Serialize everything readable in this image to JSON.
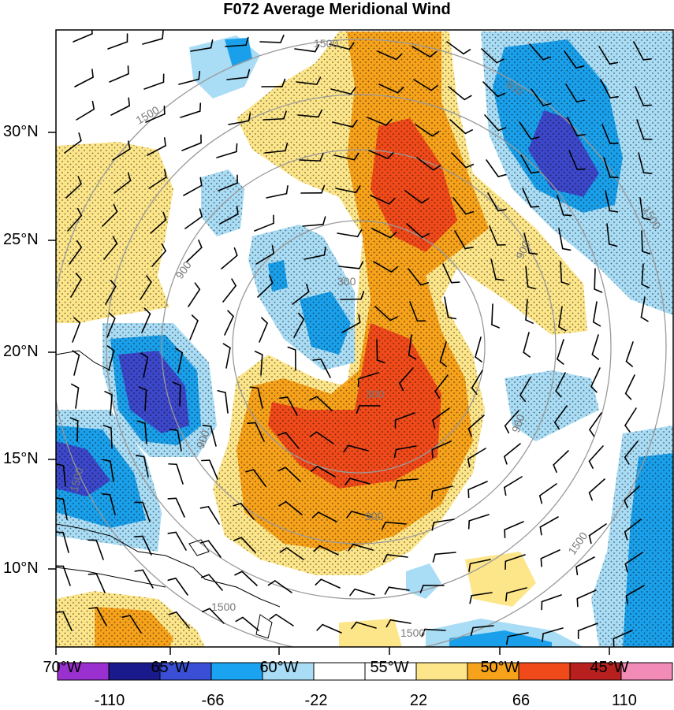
{
  "title": "F072 Average Meridional Wind",
  "latitude_labels": [
    "30°N",
    "25°N",
    "20°N",
    "15°N",
    "10°N"
  ],
  "longitude_labels": [
    "70°W",
    "65°W",
    "60°W",
    "55°W",
    "50°W",
    "45°W"
  ],
  "contour_labels": [
    "1500",
    "1500",
    "900",
    "900",
    "300",
    "300",
    "900",
    "900",
    "900",
    "1500",
    "1500",
    "1500",
    "1500",
    "900",
    "1500"
  ],
  "colorbar": {
    "labels": [
      "-110",
      "-66",
      "-22",
      "22",
      "66",
      "110"
    ],
    "colors": [
      "#9b30d0",
      "#1a1a8c",
      "#3a4fd6",
      "#1aa3f0",
      "#a9dcf5",
      "#ffffff",
      "#ffffff",
      "#fde68a",
      "#f7a21b",
      "#f04a1a",
      "#b82020",
      "#f38bb8"
    ]
  },
  "palette": {
    "dark_blue": "#3c47c9",
    "mid_blue": "#1aa0ea",
    "light_blue": "#a9dcf5",
    "yellow": "#fde68a",
    "orange": "#f7a21b",
    "red_orange": "#f04a1a",
    "contour_gray": "#9a9a9a"
  }
}
